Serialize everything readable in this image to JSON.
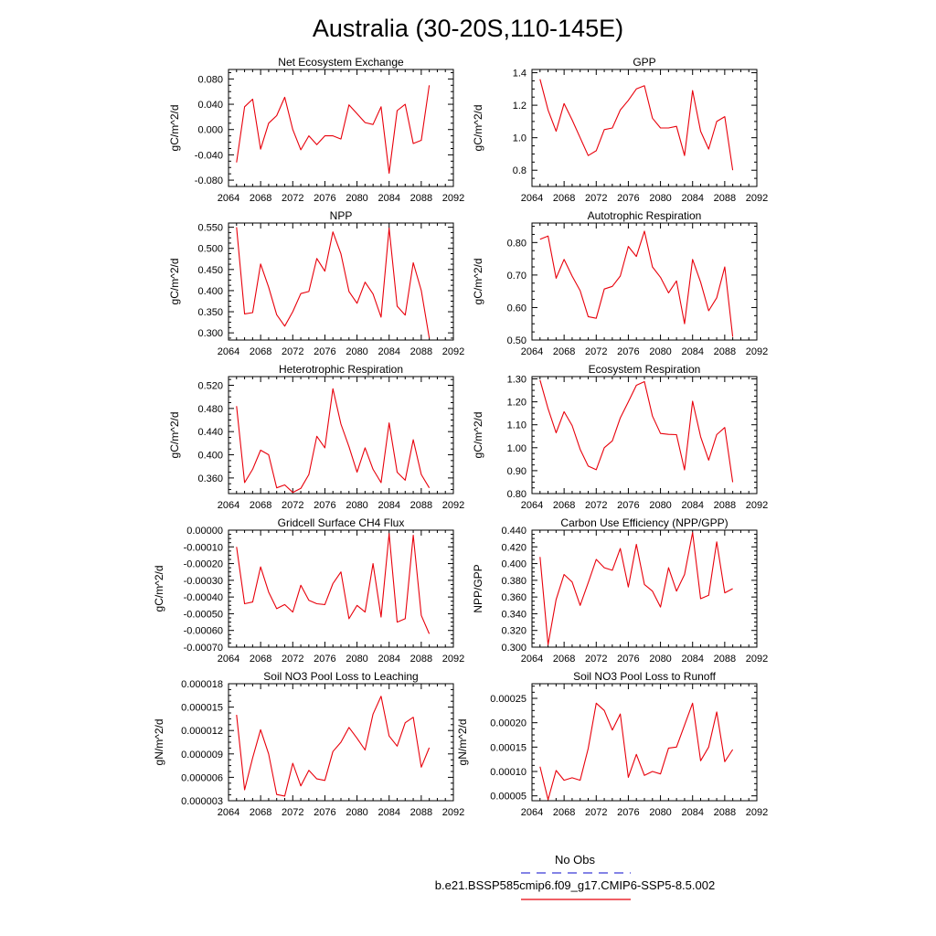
{
  "figure": {
    "title": "Australia (30-20S,110-145E)",
    "legend": {
      "obs_label": "No Obs",
      "obs_color": "#3b3bd6",
      "model_label": "b.e21.BSSP585cmip6.f09_g17.CMIP6-SSP5-8.5.002",
      "model_color": "#e8000b"
    }
  },
  "chart_data": [
    {
      "type": "line",
      "title": "Net Ecosystem Exchange",
      "ylabel": "gC/m^2/d",
      "xlim": [
        2064,
        2092
      ],
      "ylim": [
        -0.09,
        0.095
      ],
      "x_ticks": [
        "2064",
        "2068",
        "2072",
        "2076",
        "2080",
        "2084",
        "2088",
        "2092"
      ],
      "y_ticks": [
        -0.08,
        -0.04,
        0.0,
        0.04,
        0.08
      ],
      "y_tick_labels": [
        "-0.080",
        "-0.040",
        "0.000",
        "0.040",
        "0.080"
      ],
      "series": [
        {
          "color": "#e8000b",
          "x": [
            2065,
            2066,
            2067,
            2068,
            2069,
            2070,
            2071,
            2072,
            2073,
            2074,
            2075,
            2076,
            2077,
            2078,
            2079,
            2080,
            2081,
            2082,
            2083,
            2084,
            2085,
            2086,
            2087,
            2088,
            2089
          ],
          "values": [
            -0.052,
            0.036,
            0.048,
            -0.031,
            0.01,
            0.022,
            0.051,
            0.0,
            -0.032,
            -0.01,
            -0.024,
            -0.01,
            -0.01,
            -0.015,
            0.039,
            0.025,
            0.011,
            0.008,
            0.036,
            -0.069,
            0.03,
            0.04,
            -0.022,
            -0.017,
            0.07
          ]
        }
      ]
    },
    {
      "type": "line",
      "title": "GPP",
      "ylabel": "gC/m^2/d",
      "xlim": [
        2064,
        2092
      ],
      "ylim": [
        0.7,
        1.42
      ],
      "x_ticks": [
        "2064",
        "2068",
        "2072",
        "2076",
        "2080",
        "2084",
        "2088",
        "2092"
      ],
      "y_ticks": [
        0.8,
        1.0,
        1.2,
        1.4
      ],
      "y_tick_labels": [
        "0.8",
        "1.0",
        "1.2",
        "1.4"
      ],
      "series": [
        {
          "color": "#e8000b",
          "x": [
            2065,
            2066,
            2067,
            2068,
            2069,
            2070,
            2071,
            2072,
            2073,
            2074,
            2075,
            2076,
            2077,
            2078,
            2079,
            2080,
            2081,
            2082,
            2083,
            2084,
            2085,
            2086,
            2087,
            2088,
            2089
          ],
          "values": [
            1.36,
            1.17,
            1.04,
            1.21,
            1.11,
            1.0,
            0.89,
            0.92,
            1.05,
            1.06,
            1.17,
            1.23,
            1.3,
            1.32,
            1.12,
            1.06,
            1.06,
            1.07,
            0.89,
            1.29,
            1.04,
            0.93,
            1.1,
            1.13,
            0.8
          ]
        }
      ]
    },
    {
      "type": "line",
      "title": "NPP",
      "ylabel": "gC/m^2/d",
      "xlim": [
        2064,
        2092
      ],
      "ylim": [
        0.283,
        0.56
      ],
      "x_ticks": [
        "2064",
        "2068",
        "2072",
        "2076",
        "2080",
        "2084",
        "2088",
        "2092"
      ],
      "y_ticks": [
        0.3,
        0.35,
        0.4,
        0.45,
        0.5,
        0.55
      ],
      "y_tick_labels": [
        "0.300",
        "0.350",
        "0.400",
        "0.450",
        "0.500",
        "0.550"
      ],
      "series": [
        {
          "color": "#e8000b",
          "x": [
            2065,
            2066,
            2067,
            2068,
            2069,
            2070,
            2071,
            2072,
            2073,
            2074,
            2075,
            2076,
            2077,
            2078,
            2079,
            2080,
            2081,
            2082,
            2083,
            2084,
            2085,
            2086,
            2087,
            2088,
            2089
          ],
          "values": [
            0.55,
            0.345,
            0.348,
            0.463,
            0.408,
            0.343,
            0.316,
            0.35,
            0.393,
            0.398,
            0.476,
            0.446,
            0.539,
            0.487,
            0.398,
            0.37,
            0.42,
            0.392,
            0.337,
            0.548,
            0.363,
            0.342,
            0.466,
            0.4,
            0.288
          ]
        }
      ]
    },
    {
      "type": "line",
      "title": "Autotrophic Respiration",
      "ylabel": "gC/m^2/d",
      "xlim": [
        2064,
        2092
      ],
      "ylim": [
        0.5,
        0.86
      ],
      "x_ticks": [
        "2064",
        "2068",
        "2072",
        "2076",
        "2080",
        "2084",
        "2088",
        "2092"
      ],
      "y_ticks": [
        0.5,
        0.6,
        0.7,
        0.8
      ],
      "y_tick_labels": [
        "0.50",
        "0.60",
        "0.70",
        "0.80"
      ],
      "series": [
        {
          "color": "#e8000b",
          "x": [
            2065,
            2066,
            2067,
            2068,
            2069,
            2070,
            2071,
            2072,
            2073,
            2074,
            2075,
            2076,
            2077,
            2078,
            2079,
            2080,
            2081,
            2082,
            2083,
            2084,
            2085,
            2086,
            2087,
            2088,
            2089
          ],
          "values": [
            0.81,
            0.82,
            0.69,
            0.748,
            0.697,
            0.652,
            0.572,
            0.567,
            0.657,
            0.665,
            0.697,
            0.788,
            0.757,
            0.835,
            0.725,
            0.693,
            0.645,
            0.682,
            0.55,
            0.748,
            0.678,
            0.59,
            0.63,
            0.725,
            0.51
          ]
        }
      ]
    },
    {
      "type": "line",
      "title": "Heterotrophic Respiration",
      "ylabel": "gC/m^2/d",
      "xlim": [
        2064,
        2092
      ],
      "ylim": [
        0.333,
        0.535
      ],
      "x_ticks": [
        "2064",
        "2068",
        "2072",
        "2076",
        "2080",
        "2084",
        "2088",
        "2092"
      ],
      "y_ticks": [
        0.36,
        0.4,
        0.44,
        0.48,
        0.52
      ],
      "y_tick_labels": [
        "0.360",
        "0.400",
        "0.440",
        "0.480",
        "0.520"
      ],
      "series": [
        {
          "color": "#e8000b",
          "x": [
            2065,
            2066,
            2067,
            2068,
            2069,
            2070,
            2071,
            2072,
            2073,
            2074,
            2075,
            2076,
            2077,
            2078,
            2079,
            2080,
            2081,
            2082,
            2083,
            2084,
            2085,
            2086,
            2087,
            2088,
            2089
          ],
          "values": [
            0.484,
            0.352,
            0.375,
            0.408,
            0.4,
            0.343,
            0.348,
            0.335,
            0.342,
            0.366,
            0.432,
            0.412,
            0.514,
            0.453,
            0.414,
            0.37,
            0.412,
            0.375,
            0.352,
            0.455,
            0.37,
            0.356,
            0.426,
            0.366,
            0.343
          ]
        }
      ]
    },
    {
      "type": "line",
      "title": "Ecosystem Respiration",
      "ylabel": "gC/m^2/d",
      "xlim": [
        2064,
        2092
      ],
      "ylim": [
        0.8,
        1.31
      ],
      "x_ticks": [
        "2064",
        "2068",
        "2072",
        "2076",
        "2080",
        "2084",
        "2088",
        "2092"
      ],
      "y_ticks": [
        0.8,
        0.9,
        1.0,
        1.1,
        1.2,
        1.3
      ],
      "y_tick_labels": [
        "0.80",
        "0.90",
        "1.00",
        "1.10",
        "1.20",
        "1.30"
      ],
      "series": [
        {
          "color": "#e8000b",
          "x": [
            2065,
            2066,
            2067,
            2068,
            2069,
            2070,
            2071,
            2072,
            2073,
            2074,
            2075,
            2076,
            2077,
            2078,
            2079,
            2080,
            2081,
            2082,
            2083,
            2084,
            2085,
            2086,
            2087,
            2088,
            2089
          ],
          "values": [
            1.295,
            1.17,
            1.065,
            1.157,
            1.097,
            0.993,
            0.92,
            0.904,
            1.0,
            1.03,
            1.13,
            1.2,
            1.272,
            1.288,
            1.138,
            1.062,
            1.058,
            1.057,
            0.903,
            1.203,
            1.048,
            0.946,
            1.057,
            1.088,
            0.85
          ]
        }
      ]
    },
    {
      "type": "line",
      "title": "Gridcell Surface CH4 Flux",
      "ylabel": "gC/m^2/d",
      "xlim": [
        2064,
        2092
      ],
      "ylim": [
        -0.0007,
        0.0
      ],
      "x_ticks": [
        "2064",
        "2068",
        "2072",
        "2076",
        "2080",
        "2084",
        "2088",
        "2092"
      ],
      "y_ticks": [
        -0.0007,
        -0.0006,
        -0.0005,
        -0.0004,
        -0.0003,
        -0.0002,
        -0.0001,
        0.0
      ],
      "y_tick_labels": [
        "-0.00070",
        "-0.00060",
        "-0.00050",
        "-0.00040",
        "-0.00030",
        "-0.00020",
        "-0.00010",
        "0.00000"
      ],
      "series": [
        {
          "color": "#e8000b",
          "x": [
            2065,
            2066,
            2067,
            2068,
            2069,
            2070,
            2071,
            2072,
            2073,
            2074,
            2075,
            2076,
            2077,
            2078,
            2079,
            2080,
            2081,
            2082,
            2083,
            2084,
            2085,
            2086,
            2087,
            2088,
            2089
          ],
          "values": [
            -0.0001,
            -0.00044,
            -0.00043,
            -0.00022,
            -0.00037,
            -0.00047,
            -0.000445,
            -0.00049,
            -0.00033,
            -0.00042,
            -0.00044,
            -0.000445,
            -0.00032,
            -0.00025,
            -0.00053,
            -0.00045,
            -0.00049,
            -0.0002,
            -0.00052,
            -2e-05,
            -0.00055,
            -0.00053,
            -3e-05,
            -0.00051,
            -0.00062
          ]
        }
      ]
    },
    {
      "type": "line",
      "title": "Carbon Use Efficiency (NPP/GPP)",
      "ylabel": "NPP/GPP",
      "xlim": [
        2064,
        2092
      ],
      "ylim": [
        0.3,
        0.44
      ],
      "x_ticks": [
        "2064",
        "2068",
        "2072",
        "2076",
        "2080",
        "2084",
        "2088",
        "2092"
      ],
      "y_ticks": [
        0.3,
        0.32,
        0.34,
        0.36,
        0.38,
        0.4,
        0.42,
        0.44
      ],
      "y_tick_labels": [
        "0.300",
        "0.320",
        "0.340",
        "0.360",
        "0.380",
        "0.400",
        "0.420",
        "0.440"
      ],
      "series": [
        {
          "color": "#e8000b",
          "x": [
            2065,
            2066,
            2067,
            2068,
            2069,
            2070,
            2071,
            2072,
            2073,
            2074,
            2075,
            2076,
            2077,
            2078,
            2079,
            2080,
            2081,
            2082,
            2083,
            2084,
            2085,
            2086,
            2087,
            2088,
            2089
          ],
          "values": [
            0.408,
            0.303,
            0.357,
            0.387,
            0.378,
            0.35,
            0.377,
            0.405,
            0.395,
            0.392,
            0.418,
            0.372,
            0.423,
            0.375,
            0.367,
            0.348,
            0.395,
            0.367,
            0.387,
            0.437,
            0.358,
            0.362,
            0.426,
            0.365,
            0.37
          ]
        }
      ]
    },
    {
      "type": "line",
      "title": "Soil NO3 Pool Loss to Leaching",
      "ylabel": "gN/m^2/d",
      "xlim": [
        2064,
        2092
      ],
      "ylim": [
        3e-06,
        1.8e-05
      ],
      "x_ticks": [
        "2064",
        "2068",
        "2072",
        "2076",
        "2080",
        "2084",
        "2088",
        "2092"
      ],
      "y_ticks": [
        3e-06,
        6e-06,
        9e-06,
        1.2e-05,
        1.5e-05,
        1.8e-05
      ],
      "y_tick_labels": [
        "0.000003",
        "0.000006",
        "0.000009",
        "0.000012",
        "0.000015",
        "0.000018"
      ],
      "series": [
        {
          "color": "#e8000b",
          "x": [
            2065,
            2066,
            2067,
            2068,
            2069,
            2070,
            2071,
            2072,
            2073,
            2074,
            2075,
            2076,
            2077,
            2078,
            2079,
            2080,
            2081,
            2082,
            2083,
            2084,
            2085,
            2086,
            2087,
            2088,
            2089
          ],
          "values": [
            1.4e-05,
            4.4e-06,
            8.5e-06,
            1.21e-05,
            9e-06,
            3.8e-06,
            3.6e-06,
            7.8e-06,
            4.9e-06,
            6.9e-06,
            5.8e-06,
            5.6e-06,
            9.3e-06,
            1.05e-05,
            1.24e-05,
            1.1e-05,
            9.5e-06,
            1.41e-05,
            1.64e-05,
            1.13e-05,
            1e-05,
            1.3e-05,
            1.37e-05,
            7.3e-06,
            9.8e-06
          ]
        }
      ]
    },
    {
      "type": "line",
      "title": "Soil NO3 Pool Loss to Runoff",
      "ylabel": "gN/m^2/d",
      "xlim": [
        2064,
        2092
      ],
      "ylim": [
        4e-05,
        0.00028
      ],
      "x_ticks": [
        "2064",
        "2068",
        "2072",
        "2076",
        "2080",
        "2084",
        "2088",
        "2092"
      ],
      "y_ticks": [
        5e-05,
        0.0001,
        0.00015,
        0.0002,
        0.00025
      ],
      "y_tick_labels": [
        "0.00005",
        "0.00010",
        "0.00015",
        "0.00020",
        "0.00025"
      ],
      "series": [
        {
          "color": "#e8000b",
          "x": [
            2065,
            2066,
            2067,
            2068,
            2069,
            2070,
            2071,
            2072,
            2073,
            2074,
            2075,
            2076,
            2077,
            2078,
            2079,
            2080,
            2081,
            2082,
            2083,
            2084,
            2085,
            2086,
            2087,
            2088,
            2089
          ],
          "values": [
            0.00011,
            4.2e-05,
            0.000102,
            8.2e-05,
            8.7e-05,
            8.2e-05,
            0.000147,
            0.00024,
            0.000225,
            0.000185,
            0.000218,
            8.8e-05,
            0.000135,
            9.2e-05,
            0.0001,
            9.5e-05,
            0.000148,
            0.00015,
            0.000195,
            0.00024,
            0.000122,
            0.00015,
            0.000222,
            0.00012,
            0.000145
          ]
        }
      ]
    }
  ]
}
